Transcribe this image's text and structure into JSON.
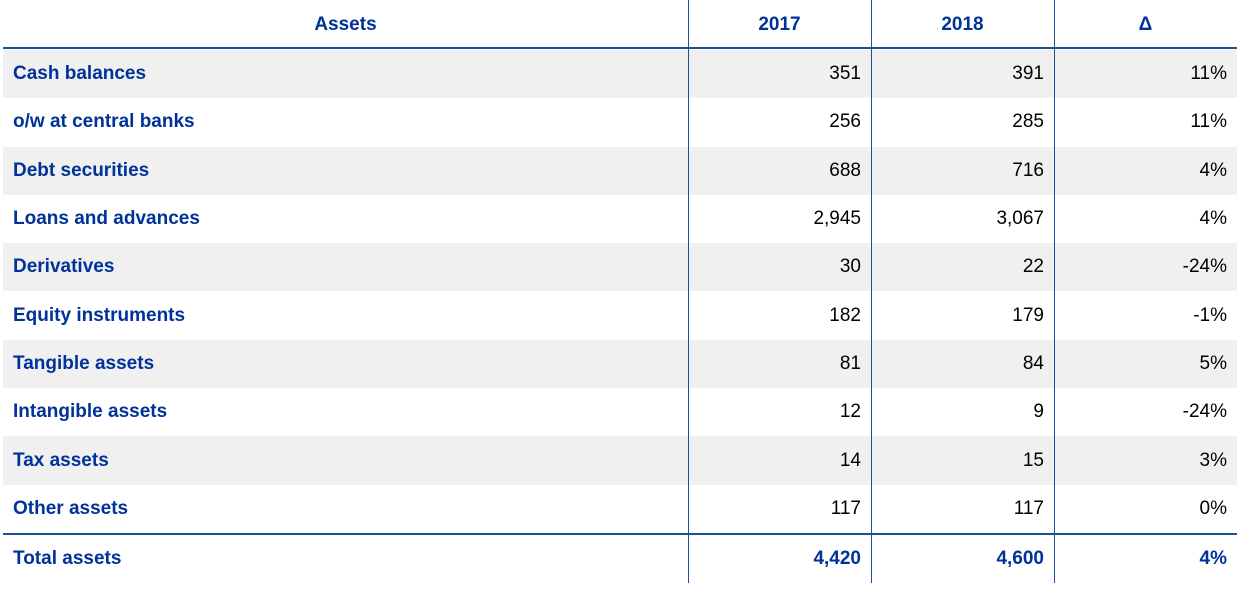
{
  "table": {
    "header": [
      "Assets",
      "2017",
      "2018",
      "Δ"
    ],
    "rows": [
      [
        "Cash balances",
        "351",
        "391",
        "11%"
      ],
      [
        "o/w at central banks",
        "256",
        "285",
        "11%"
      ],
      [
        "Debt securities",
        "688",
        "716",
        "4%"
      ],
      [
        "Loans and advances",
        "2,945",
        "3,067",
        "4%"
      ],
      [
        "Derivatives",
        "30",
        "22",
        "-24%"
      ],
      [
        "Equity instruments",
        "182",
        "179",
        "-1%"
      ],
      [
        "Tangible assets",
        "81",
        "84",
        "5%"
      ],
      [
        "Intangible assets",
        "12",
        "9",
        "-24%"
      ],
      [
        "Tax assets",
        "14",
        "15",
        "3%"
      ],
      [
        "Other assets",
        "117",
        "117",
        "0%"
      ]
    ],
    "total": [
      "Total assets",
      "4,420",
      "4,600",
      "4%"
    ]
  }
}
